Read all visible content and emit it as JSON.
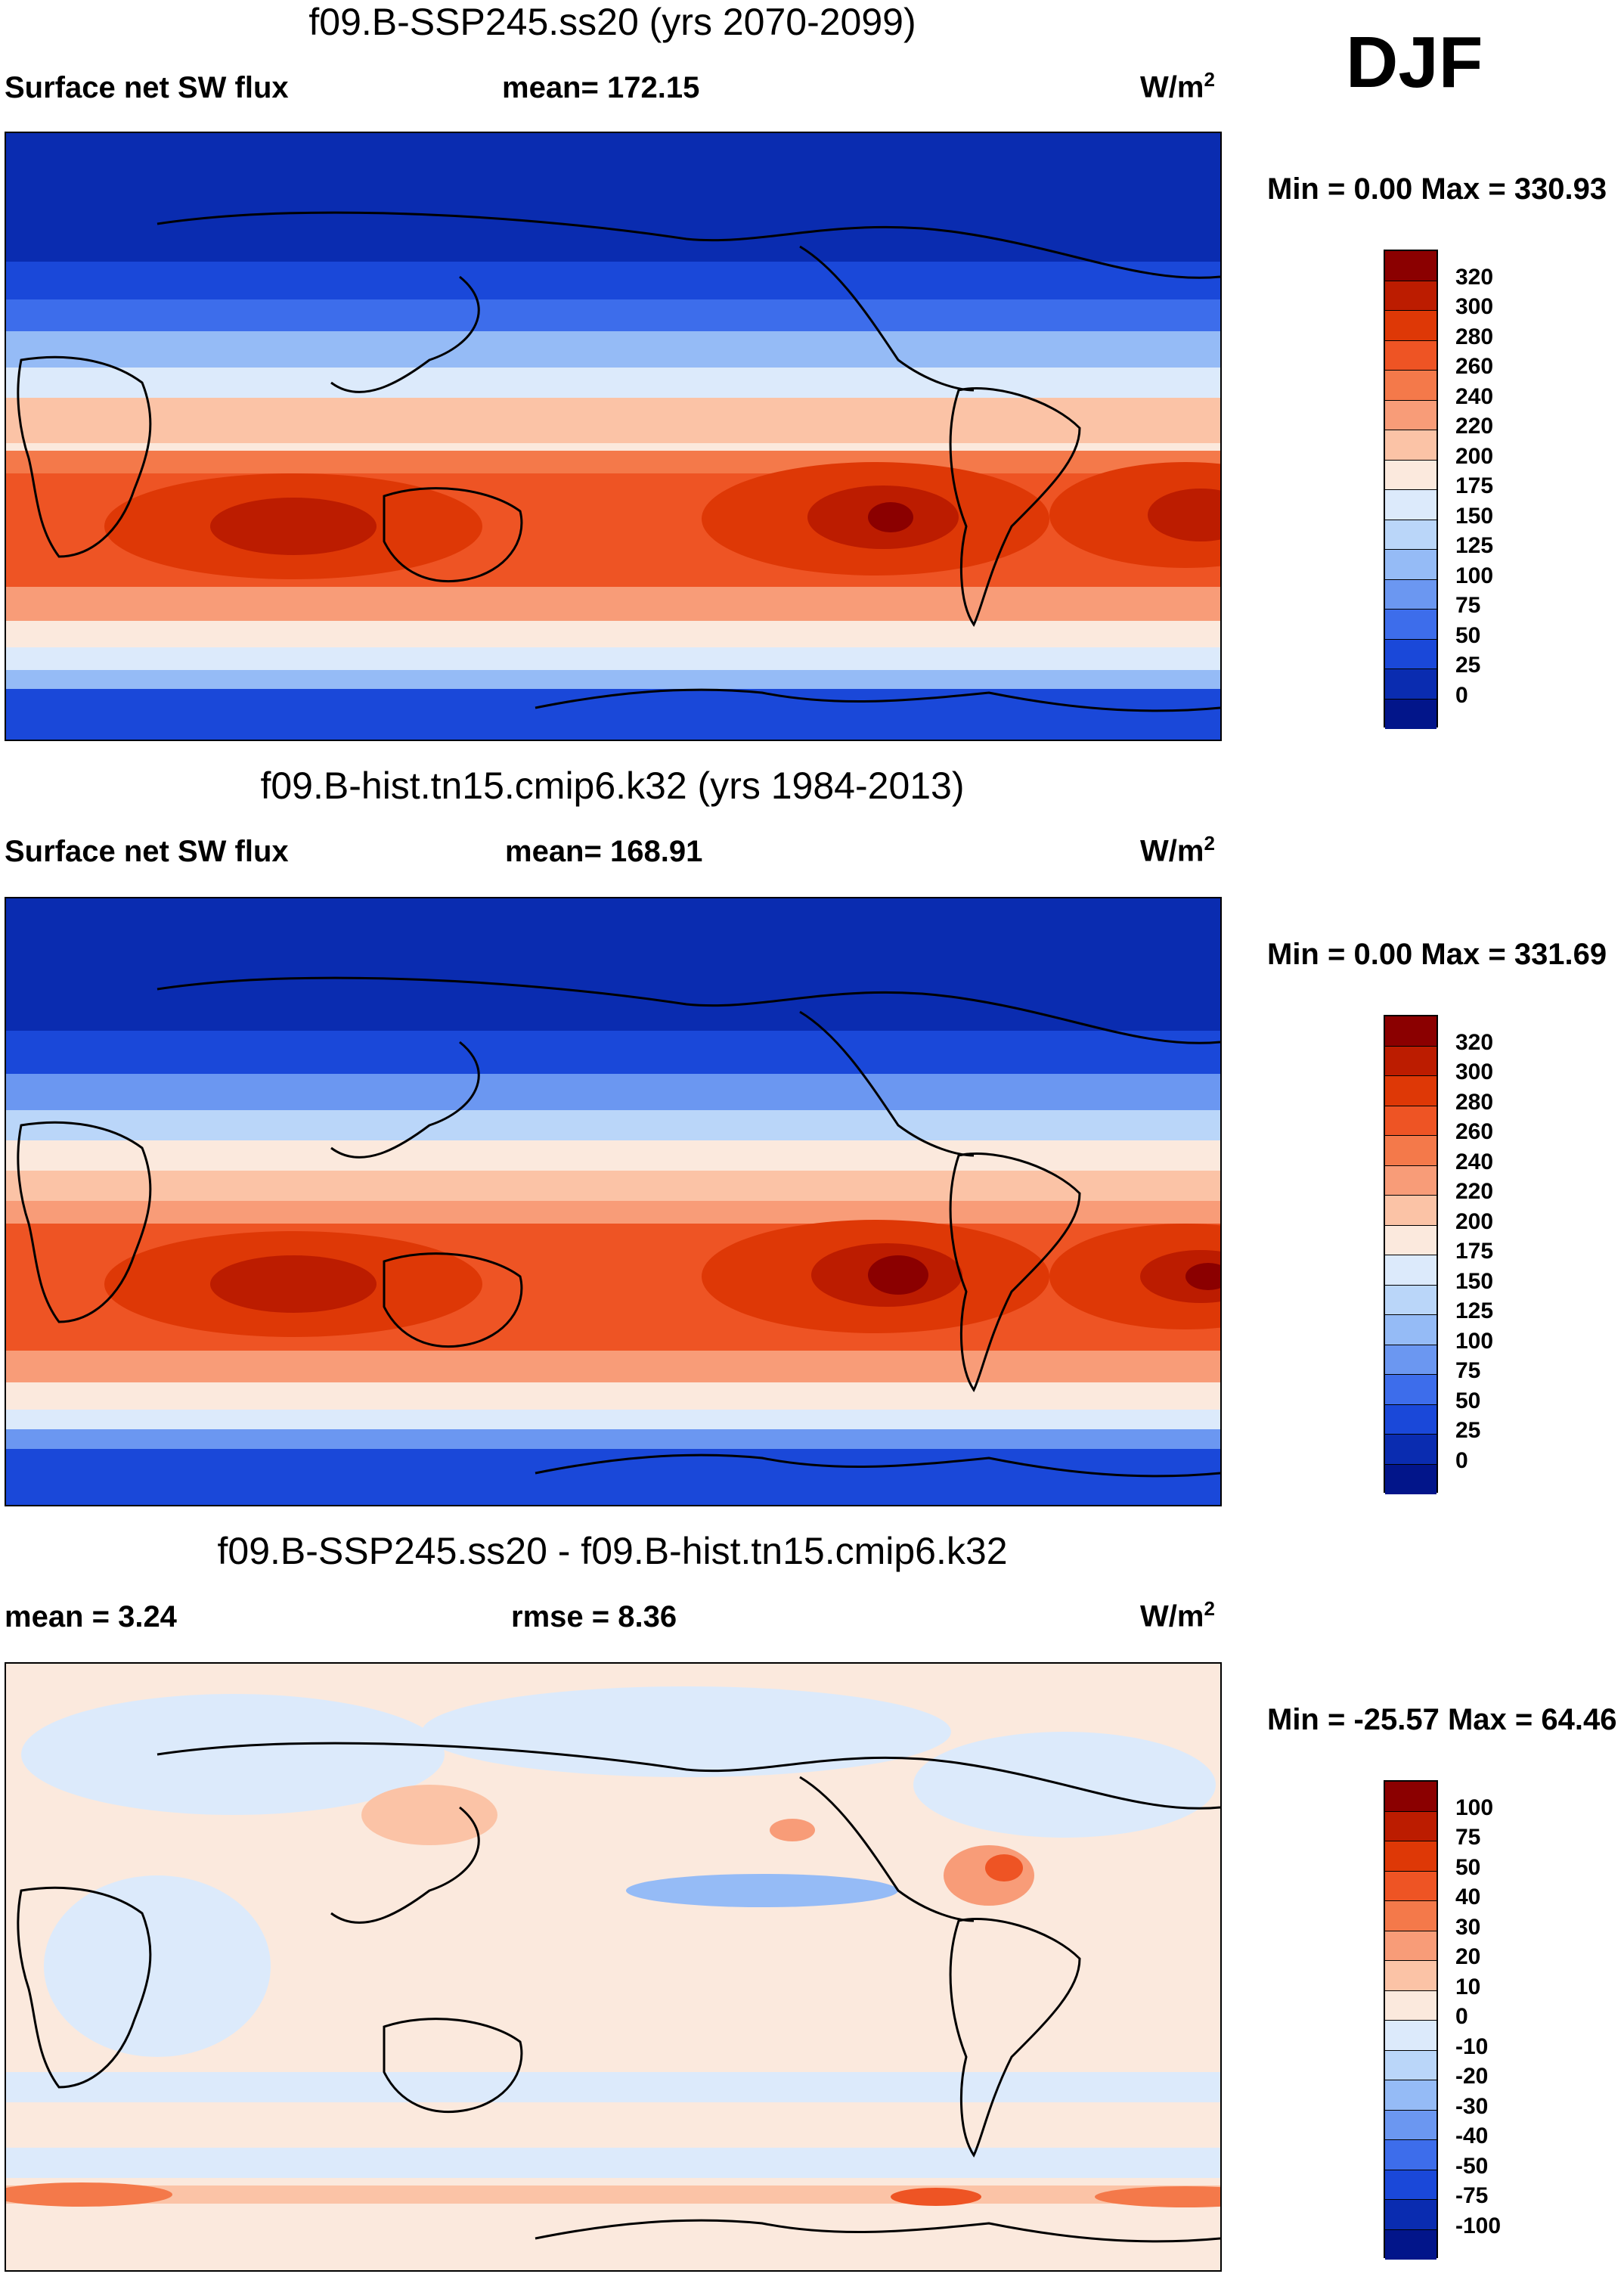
{
  "season": "DJF",
  "panels": [
    {
      "title": "f09.B-SSP245.ss20 (yrs 2070-2099)",
      "left_label": "Surface net SW flux",
      "center_label": "mean= 172.15",
      "units_base": "W/m",
      "units_exp": "2",
      "minmax": "Min =    0.00 Max = 330.93",
      "colorbar": {
        "ticks": [
          "320",
          "300",
          "280",
          "260",
          "240",
          "220",
          "200",
          "175",
          "150",
          "125",
          "100",
          "75",
          "50",
          "25",
          "0"
        ],
        "colors": [
          "#8b0000",
          "#bc1c00",
          "#de3806",
          "#ee5424",
          "#f4794a",
          "#f89c78",
          "#fbc3a6",
          "#fbe9dd",
          "#dceafb",
          "#bad6f9",
          "#95bbf6",
          "#6b97f1",
          "#3d6deb",
          "#1a48d9",
          "#0a2cb0",
          "#02158a"
        ]
      }
    },
    {
      "title": "f09.B-hist.tn15.cmip6.k32 (yrs 1984-2013)",
      "left_label": "Surface net SW flux",
      "center_label": "mean= 168.91",
      "units_base": "W/m",
      "units_exp": "2",
      "minmax": "Min =    0.00 Max = 331.69",
      "colorbar": {
        "ticks": [
          "320",
          "300",
          "280",
          "260",
          "240",
          "220",
          "200",
          "175",
          "150",
          "125",
          "100",
          "75",
          "50",
          "25",
          "0"
        ],
        "colors": [
          "#8b0000",
          "#bc1c00",
          "#de3806",
          "#ee5424",
          "#f4794a",
          "#f89c78",
          "#fbc3a6",
          "#fbe9dd",
          "#dceafb",
          "#bad6f9",
          "#95bbf6",
          "#6b97f1",
          "#3d6deb",
          "#1a48d9",
          "#0a2cb0",
          "#02158a"
        ]
      }
    },
    {
      "title": "f09.B-SSP245.ss20 - f09.B-hist.tn15.cmip6.k32",
      "left_label": "mean =    3.24",
      "center_label": "rmse =    8.36",
      "units_base": "W/m",
      "units_exp": "2",
      "minmax": "Min = -25.57 Max =  64.46",
      "colorbar": {
        "ticks": [
          "100",
          "75",
          "50",
          "40",
          "30",
          "20",
          "10",
          "0",
          "-10",
          "-20",
          "-30",
          "-40",
          "-50",
          "-75",
          "-100"
        ],
        "colors": [
          "#8b0000",
          "#bc1c00",
          "#de3806",
          "#ee5424",
          "#f4794a",
          "#f89c78",
          "#fbc3a6",
          "#fbe9dd",
          "#dceafb",
          "#bad6f9",
          "#95bbf6",
          "#6b97f1",
          "#3d6deb",
          "#1a48d9",
          "#0a2cb0",
          "#02158a"
        ]
      }
    }
  ]
}
